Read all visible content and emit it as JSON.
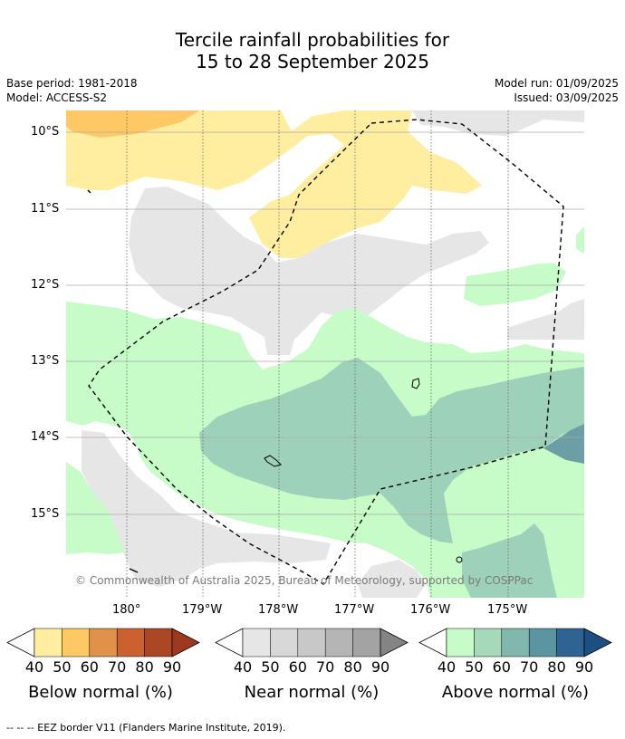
{
  "title": {
    "line1": "Tercile rainfall probabilities for",
    "line2": "15 to 28 September 2025"
  },
  "meta": {
    "base_period": "Base period: 1981-2018",
    "model": "Model: ACCESS-S2",
    "model_run": "Model run: 01/09/2025",
    "issued": "Issued: 03/09/2025"
  },
  "map": {
    "lat_labels": [
      "10°S",
      "11°S",
      "12°S",
      "13°S",
      "14°S",
      "15°S"
    ],
    "lon_labels": [
      "180°",
      "179°W",
      "178°W",
      "177°W",
      "176°W",
      "175°W"
    ],
    "copyright": "© Commonwealth of Australia 2025, Bureau of Meteorology, supported by COSPPac",
    "colors": {
      "below_40": "#ffeda0",
      "below_50": "#fec965",
      "near_40": "#e6e6e6",
      "above_40": "#c7fcc8",
      "above_50": "#9dd1b9",
      "above_60": "#6b9fa5"
    }
  },
  "colorbars": [
    {
      "caption": "Below normal (%)",
      "ticks": [
        "40",
        "50",
        "60",
        "70",
        "80",
        "90"
      ],
      "colors": [
        "#ffeda0",
        "#fec965",
        "#e0914a",
        "#cc6130",
        "#ac4726"
      ],
      "over": "#a0381f"
    },
    {
      "caption": "Near normal (%)",
      "ticks": [
        "40",
        "50",
        "60",
        "70",
        "80",
        "90"
      ],
      "colors": [
        "#e6e6e6",
        "#d8d8d8",
        "#c8c8c8",
        "#b5b5b5",
        "#a3a3a3"
      ],
      "over": "#848484"
    },
    {
      "caption": "Above normal (%)",
      "ticks": [
        "40",
        "50",
        "60",
        "70",
        "80",
        "90"
      ],
      "colors": [
        "#c7fcc8",
        "#a5d9ba",
        "#81b7ad",
        "#5a95a1",
        "#2f6393"
      ],
      "over": "#1d4f82"
    }
  ],
  "footer": "-- -- -- EEZ border V11 (Flanders Marine Institute, 2019)."
}
